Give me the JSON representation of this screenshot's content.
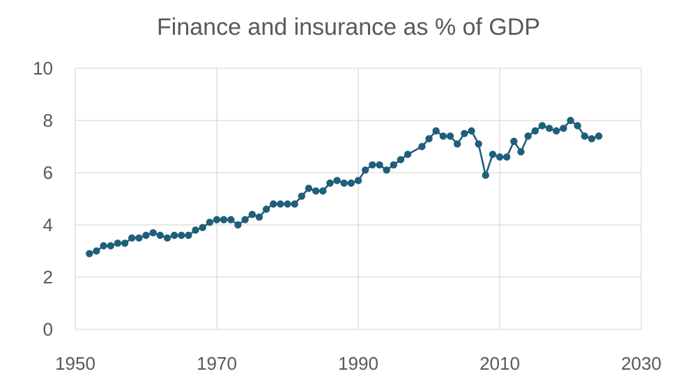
{
  "chart_data": {
    "type": "line",
    "title": "Finance and insurance as % of GDP",
    "xlabel": "",
    "ylabel": "",
    "xlim": [
      1950,
      2030
    ],
    "ylim": [
      0,
      10
    ],
    "x_ticks": [
      "1950",
      "1970",
      "1990",
      "2010",
      "2030"
    ],
    "y_ticks": [
      "0",
      "2",
      "4",
      "6",
      "8",
      "10"
    ],
    "grid": true,
    "legend": "none",
    "series_color": "#1f5f7a",
    "series": [
      {
        "x": [
          1952,
          1953,
          1954,
          1955,
          1956,
          1957,
          1958,
          1959,
          1960,
          1961,
          1962,
          1963,
          1964,
          1965,
          1966,
          1967,
          1968,
          1969,
          1970,
          1971,
          1972,
          1973,
          1974,
          1975,
          1976,
          1977,
          1978,
          1979,
          1980,
          1981,
          1982,
          1983,
          1984,
          1985,
          1986,
          1987,
          1988,
          1989,
          1990,
          1991,
          1992,
          1993,
          1994,
          1995,
          1996,
          1997,
          1999,
          2000,
          2001,
          2002,
          2003,
          2004,
          2005,
          2006,
          2007,
          2008,
          2009,
          2010,
          2011,
          2012,
          2013,
          2014,
          2015,
          2016,
          2017,
          2018,
          2019,
          2020,
          2021,
          2022,
          2023,
          2024
        ],
        "values": [
          2.9,
          3.0,
          3.2,
          3.2,
          3.3,
          3.3,
          3.5,
          3.5,
          3.6,
          3.7,
          3.6,
          3.5,
          3.6,
          3.6,
          3.6,
          3.8,
          3.9,
          4.1,
          4.2,
          4.2,
          4.2,
          4.0,
          4.2,
          4.4,
          4.3,
          4.6,
          4.8,
          4.8,
          4.8,
          4.8,
          5.1,
          5.4,
          5.3,
          5.3,
          5.6,
          5.7,
          5.6,
          5.6,
          5.7,
          6.1,
          6.3,
          6.3,
          6.1,
          6.3,
          6.5,
          6.7,
          7.0,
          7.3,
          7.6,
          7.4,
          7.4,
          7.1,
          7.5,
          7.6,
          7.1,
          5.9,
          6.7,
          6.6,
          6.6,
          7.2,
          6.8,
          7.4,
          7.6,
          7.8,
          7.7,
          7.6,
          7.7,
          8.0,
          7.8,
          7.4,
          7.3,
          7.4
        ]
      }
    ]
  }
}
